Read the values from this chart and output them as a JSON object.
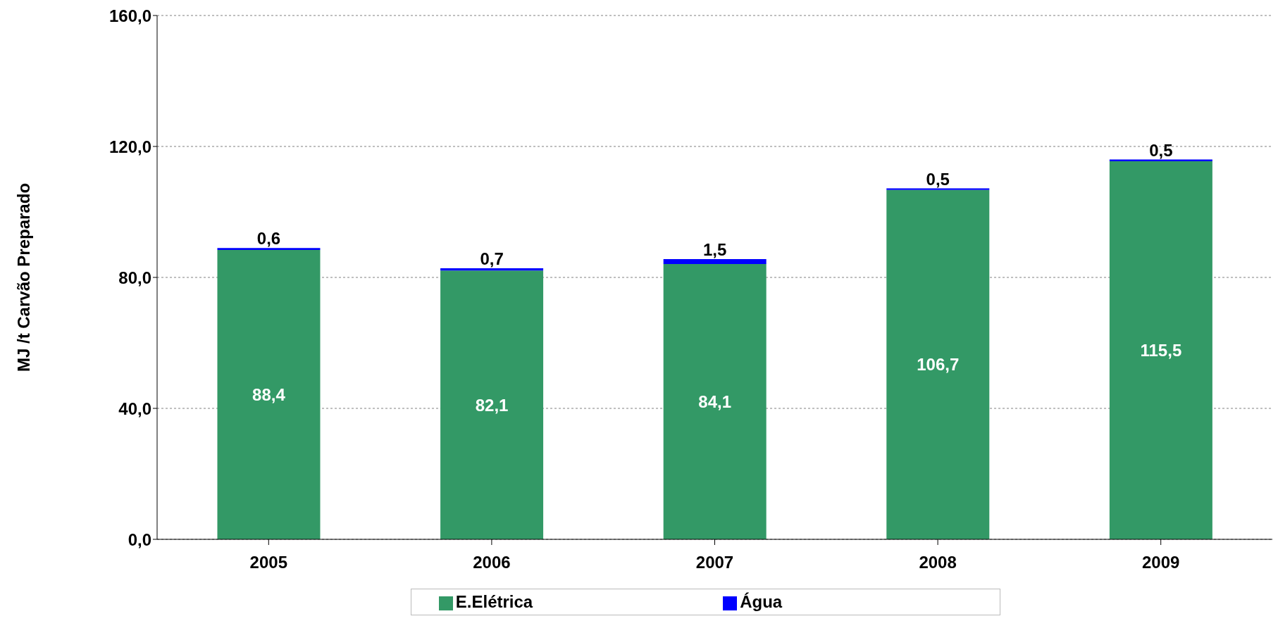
{
  "chart_data": {
    "type": "bar",
    "stacked": true,
    "ylabel": "MJ /t  Carvão Preparado",
    "categories": [
      "2005",
      "2006",
      "2007",
      "2008",
      "2009"
    ],
    "series": [
      {
        "name": "E.Elétrica",
        "color": "#339966",
        "values": [
          88.4,
          82.1,
          84.1,
          106.7,
          115.5
        ],
        "value_labels": [
          "88,4",
          "82,1",
          "84,1",
          "106,7",
          "115,5"
        ]
      },
      {
        "name": "Água",
        "color": "#0000ff",
        "values": [
          0.6,
          0.7,
          1.5,
          0.5,
          0.5
        ],
        "value_labels": [
          "0,6",
          "0,7",
          "1,5",
          "0,5",
          "0,5"
        ]
      }
    ],
    "ylim": [
      0,
      160
    ],
    "yticks": [
      {
        "value": 0,
        "label": "0,0"
      },
      {
        "value": 40,
        "label": "40,0"
      },
      {
        "value": 80,
        "label": "80,0"
      },
      {
        "value": 120,
        "label": "120,0"
      },
      {
        "value": 160,
        "label": "160,0"
      }
    ],
    "grid": "y",
    "legend": "bottom"
  }
}
